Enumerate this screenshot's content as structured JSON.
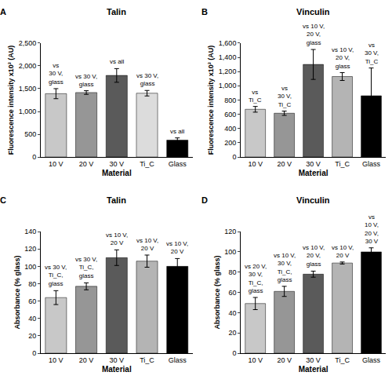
{
  "chart_data": [
    {
      "panel": "A",
      "type": "bar",
      "title": "Talin",
      "x_label": "Material",
      "y_label": "Fluorescence intensity x10³ (AU)",
      "categories": [
        "10 V",
        "20 V",
        "30 V",
        "Ti_C",
        "Glass"
      ],
      "values": [
        1390,
        1415,
        1790,
        1400,
        370
      ],
      "errors": [
        110,
        40,
        150,
        60,
        50
      ],
      "colors": [
        "#c8c8c8",
        "#969696",
        "#5a5a5a",
        "#dcdcdc",
        "#000000"
      ],
      "annotations": [
        [
          "vs",
          "30 V,",
          "glass"
        ],
        [
          "vs 30 V,",
          "glass"
        ],
        [
          "vs all"
        ],
        [
          "vs 30 V,",
          "glass"
        ],
        [
          "vs all"
        ]
      ],
      "ylim": [
        0,
        2500
      ],
      "yticks": [
        0,
        500,
        {
          "value": 1000,
          "label": "1,000"
        },
        {
          "value": 1500,
          "label": "1,500"
        },
        {
          "value": 2000,
          "label": "2,000"
        },
        {
          "value": 2500,
          "label": "2,500"
        }
      ],
      "grid": false
    },
    {
      "panel": "B",
      "type": "bar",
      "title": "Vinculin",
      "x_label": "Material",
      "y_label": "Fluorescence intensity x10³ (AU)",
      "categories": [
        "10 V",
        "20 V",
        "30 V",
        "Ti_C",
        "Glass"
      ],
      "values": [
        670,
        615,
        1300,
        1130,
        860
      ],
      "errors": [
        40,
        30,
        210,
        55,
        390
      ],
      "colors": [
        "#c8c8c8",
        "#969696",
        "#5a5a5a",
        "#b4b4b4",
        "#000000"
      ],
      "annotations": [
        [
          "vs",
          "Ti_C"
        ],
        [
          "vs",
          "30 V,",
          "Ti_C"
        ],
        [
          "vs 10 V,",
          "20 V,",
          "glass"
        ],
        [
          "vs 10 V,",
          "20 V,",
          "glass"
        ],
        [
          "vs",
          "30 V,",
          "Ti_C"
        ]
      ],
      "ylim": [
        0,
        1600
      ],
      "yticks": [
        0,
        200,
        400,
        600,
        800,
        {
          "value": 1000,
          "label": "1,000"
        },
        {
          "value": 1200,
          "label": "1,200"
        },
        {
          "value": 1400,
          "label": "1,400"
        },
        {
          "value": 1600,
          "label": "1,600"
        }
      ],
      "grid": false
    },
    {
      "panel": "C",
      "type": "bar",
      "title": "Talin",
      "x_label": "Material",
      "y_label": "Absorbance (% glass)",
      "categories": [
        "10 V",
        "20 V",
        "30 V",
        "Ti_C",
        "Glass"
      ],
      "values": [
        64,
        77,
        110,
        106,
        100
      ],
      "errors": [
        8,
        4,
        9,
        7,
        9
      ],
      "colors": [
        "#c8c8c8",
        "#969696",
        "#5a5a5a",
        "#b4b4b4",
        "#000000"
      ],
      "annotations": [
        [
          "vs 30 V,",
          "Ti_C,",
          "glass"
        ],
        [
          "vs 30 V,",
          "Ti_C,",
          "glass"
        ],
        [
          "vs 10 V,",
          "20 V"
        ],
        [
          "vs 10 V,",
          "20 V"
        ],
        [
          "vs 10 V,",
          "20 V"
        ]
      ],
      "ylim": [
        0,
        140
      ],
      "yticks": [
        0,
        20,
        40,
        60,
        80,
        100,
        120,
        140
      ],
      "grid": false
    },
    {
      "panel": "D",
      "type": "bar",
      "title": "Vinculin",
      "x_label": "Material",
      "y_label": "Absorbance (% glass)",
      "categories": [
        "10 V",
        "20 V",
        "30 V",
        "Ti_C",
        "Glass"
      ],
      "values": [
        49,
        61,
        78,
        89,
        100
      ],
      "errors": [
        6,
        5,
        3,
        1,
        4
      ],
      "colors": [
        "#c8c8c8",
        "#969696",
        "#5a5a5a",
        "#b4b4b4",
        "#000000"
      ],
      "annotations": [
        [
          "vs 20 V,",
          "30 V,",
          "Ti_C,",
          "glass"
        ],
        [
          "vs 10 V,",
          "30 V,",
          "Ti_C,",
          "glass"
        ],
        [
          "vs 10 V,",
          "20 V,",
          "glass"
        ],
        [
          "vs 10 V,",
          "20 V"
        ],
        [
          "vs",
          "10 V,",
          "20 V,",
          "30 V"
        ]
      ],
      "ylim": [
        0,
        120
      ],
      "yticks": [
        0,
        20,
        40,
        60,
        80,
        100,
        120
      ],
      "grid": false
    }
  ]
}
